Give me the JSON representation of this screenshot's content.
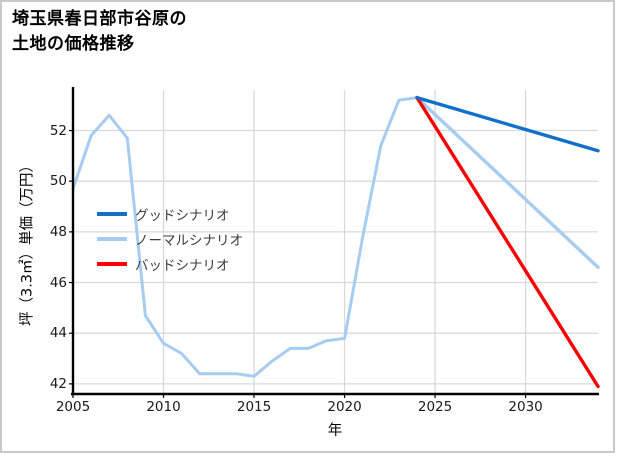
{
  "title": {
    "line1": "埼玉県春日部市谷原の",
    "line2": "土地の価格推移"
  },
  "chart_data": {
    "type": "line",
    "title": "埼玉県春日部市谷原の土地の価格推移",
    "xlabel": "年",
    "ylabel": "坪（3.3㎡）単価（万円）",
    "xlim": [
      2005,
      2034
    ],
    "ylim": [
      41.6,
      53.6
    ],
    "x_ticks": [
      2005,
      2010,
      2015,
      2020,
      2025,
      2030
    ],
    "y_ticks": [
      42,
      44,
      46,
      48,
      50,
      52
    ],
    "grid": true,
    "legend_position": "center-left",
    "colors": {
      "good": "#1170c9",
      "normal": "#a6ccf2",
      "bad": "#fa0000",
      "grid": "#d9d9d9",
      "spine": "#000000",
      "frame": "#c9c9c9",
      "tick_text": "#1a1a1a",
      "legend_text": "#3d3d3d"
    },
    "history": {
      "color_key": "normal",
      "x": [
        2005,
        2006,
        2007,
        2008,
        2009,
        2010,
        2011,
        2012,
        2013,
        2014,
        2015,
        2016,
        2017,
        2018,
        2019,
        2020,
        2021,
        2022,
        2023,
        2024
      ],
      "values": [
        49.7,
        51.8,
        52.6,
        51.7,
        44.7,
        43.6,
        43.2,
        42.4,
        42.4,
        42.4,
        42.3,
        42.9,
        43.4,
        43.4,
        43.7,
        43.8,
        47.8,
        51.4,
        53.2,
        53.3
      ]
    },
    "series": [
      {
        "name": "グッドシナリオ",
        "color_key": "good",
        "x": [
          2024,
          2034
        ],
        "values": [
          53.3,
          51.2
        ]
      },
      {
        "name": "ノーマルシナリオ",
        "color_key": "normal",
        "x": [
          2024,
          2034
        ],
        "values": [
          53.3,
          46.6
        ]
      },
      {
        "name": "バッドシナリオ",
        "color_key": "bad",
        "x": [
          2024,
          2034
        ],
        "values": [
          53.3,
          41.9
        ]
      }
    ]
  }
}
